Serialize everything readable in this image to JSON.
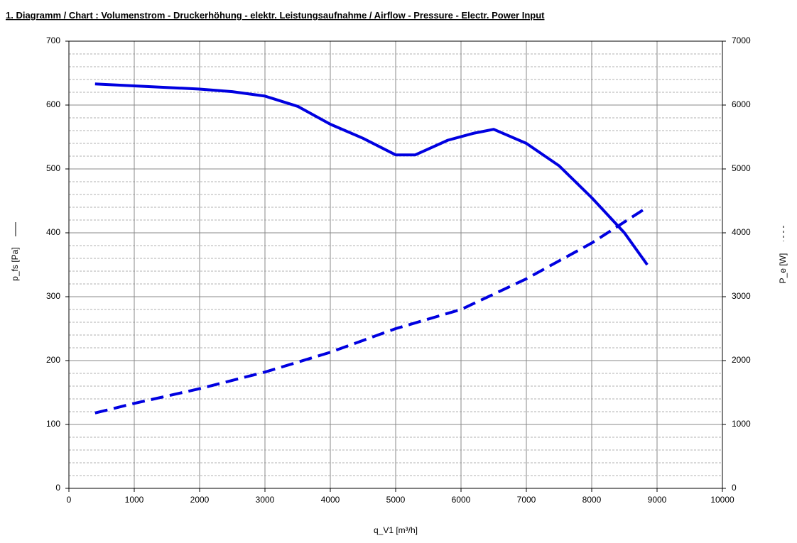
{
  "chart_data": {
    "type": "line",
    "title": "1. Diagramm / Chart :   Volumenstrom - Druckerhöhung - elektr. Leistungsaufnahme / Airflow - Pressure - Electr. Power Input",
    "x_label": "q_V1 [m³/h]",
    "y_label": "p_fs [Pa]",
    "y2_label": "P_e [W]",
    "xlim": [
      0,
      10000
    ],
    "xticks": [
      0,
      1000,
      2000,
      3000,
      4000,
      5000,
      6000,
      7000,
      8000,
      9000,
      10000
    ],
    "ylim": [
      0,
      700
    ],
    "yticks": [
      0,
      100,
      200,
      300,
      400,
      500,
      600,
      700
    ],
    "y2lim": [
      0,
      7000
    ],
    "y2ticks": [
      0,
      1000,
      2000,
      3000,
      4000,
      5000,
      6000,
      7000
    ],
    "grid": true,
    "minor_grid_divisions": 5,
    "series": [
      {
        "color": "#0000e0",
        "style": "solid",
        "x": [
          400,
          1000,
          2000,
          2500,
          3000,
          3500,
          4000,
          4500,
          5000,
          5300,
          5800,
          6200,
          6500,
          7000,
          7500,
          8000,
          8500,
          8850
        ],
        "values": [
          633,
          630,
          625,
          621,
          614,
          598,
          570,
          548,
          522,
          522,
          545,
          556,
          562,
          540,
          505,
          455,
          400,
          350
        ]
      },
      {
        "color": "#0000e0",
        "style": "dashed",
        "axis": "y2",
        "x": [
          400,
          1000,
          2000,
          3000,
          4000,
          5000,
          6000,
          7000,
          8000,
          8850
        ],
        "values": [
          1180,
          1330,
          1560,
          1820,
          2130,
          2500,
          2800,
          3280,
          3840,
          4400
        ]
      }
    ]
  }
}
